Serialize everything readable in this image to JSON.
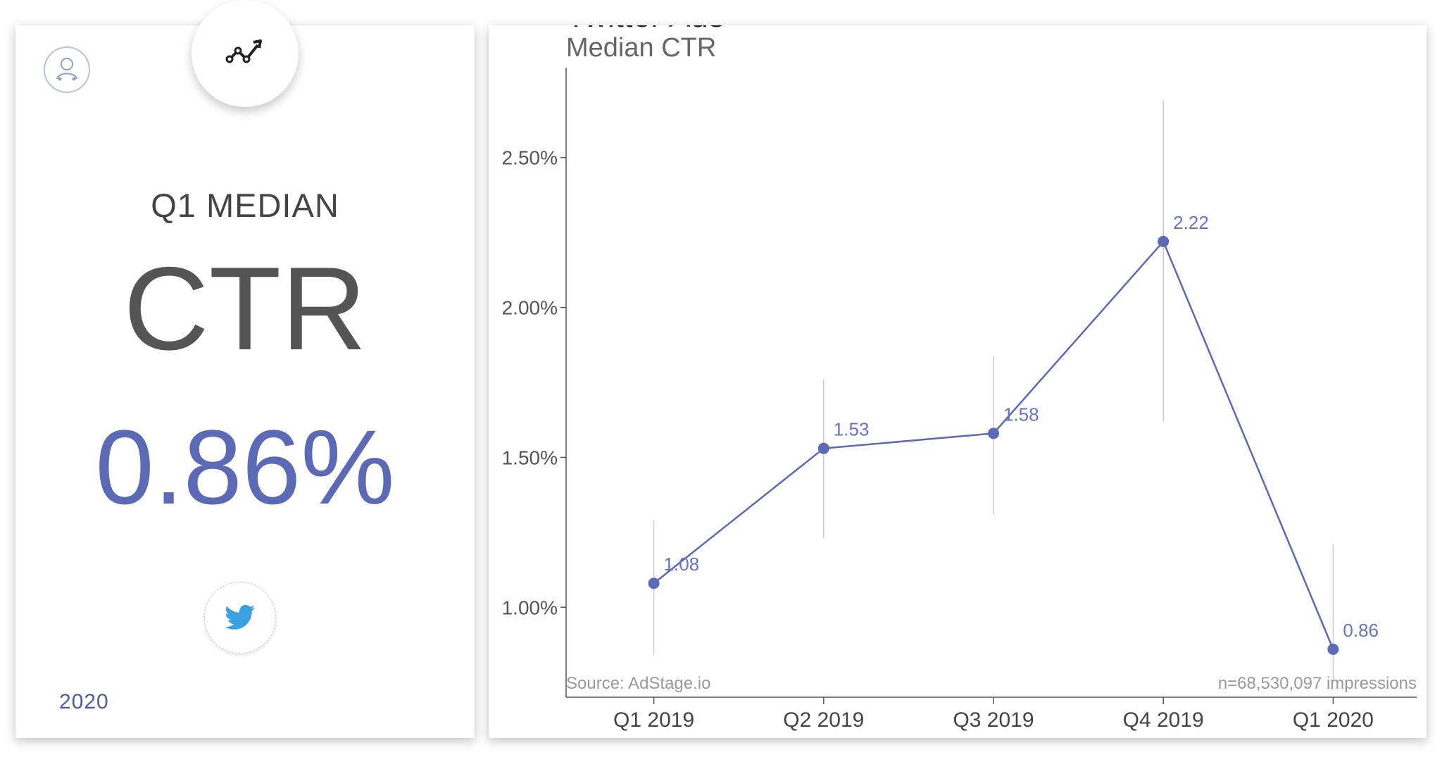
{
  "left_panel": {
    "subtitle": "Q1 MEDIAN",
    "metric": "CTR",
    "value": "0.86%",
    "year": "2020",
    "icons": {
      "profile": "user-profile-icon",
      "trend": "trend-line-icon",
      "platform": "twitter-bird-icon"
    },
    "accent_color": "#5c69b5"
  },
  "chart_data": {
    "type": "line",
    "title": "Twitter Ads",
    "subtitle": "Median CTR",
    "categories": [
      "Q1 2019",
      "Q2 2019",
      "Q3 2019",
      "Q4 2019",
      "Q1 2020"
    ],
    "series": [
      {
        "values": [
          1.08,
          1.53,
          1.58,
          2.22,
          0.86
        ],
        "value_labels": [
          "1.08",
          "1.53",
          "1.58",
          "2.22",
          "0.86"
        ],
        "error_low": [
          0.84,
          1.23,
          1.31,
          1.62,
          0.75
        ],
        "error_high": [
          1.29,
          1.76,
          1.84,
          2.69,
          1.21
        ],
        "color": "#5c69b5"
      }
    ],
    "ylim": [
      0.7,
      2.8
    ],
    "y_ticks": [
      1.0,
      1.5,
      2.0,
      2.5
    ],
    "y_tick_labels": [
      "1.00%",
      "1.50%",
      "2.00%",
      "2.50%"
    ],
    "xlabel": "",
    "ylabel": "",
    "grid": false,
    "annotations": {
      "source": "Source: AdStage.io",
      "sample": "n=68,530,097 impressions"
    },
    "label_color": "#6673c4",
    "error_bar_color": "#cccccc"
  }
}
